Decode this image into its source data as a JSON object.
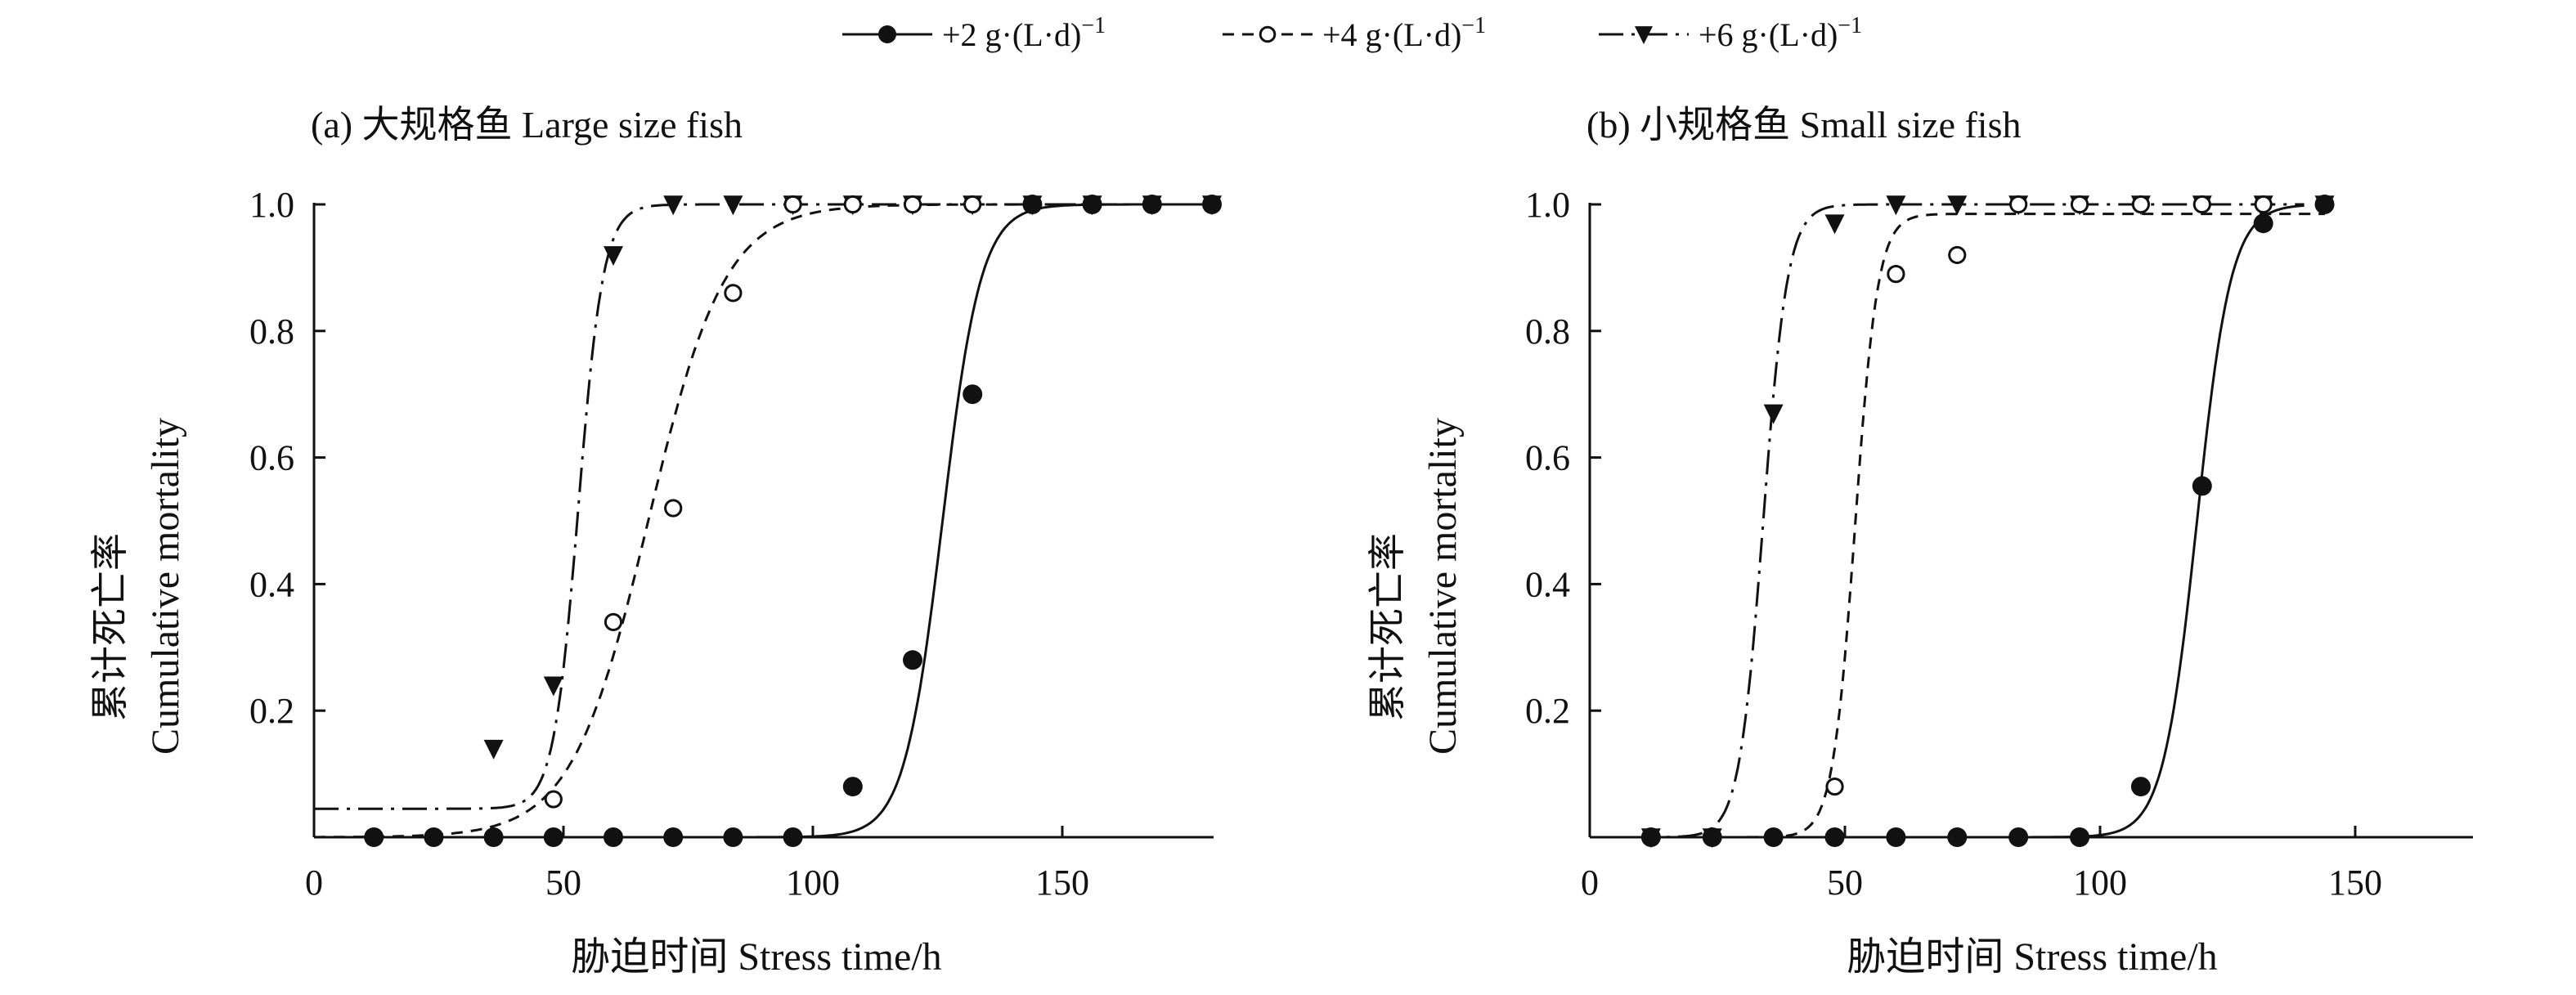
{
  "legend": [
    {
      "label": "+2 g·(L·d)",
      "sup": "−1",
      "marker": "filled-circle",
      "line": "solid"
    },
    {
      "label": "+4 g·(L·d)",
      "sup": "−1",
      "marker": "open-circle",
      "line": "dashed"
    },
    {
      "label": "+6 g·(L·d)",
      "sup": "−1",
      "marker": "filled-triangle-down",
      "line": "dash-dot"
    }
  ],
  "chart_data": [
    {
      "type": "scatter",
      "title": "(a) 大规格鱼 Large size fish",
      "xlabel": "胁迫时间 Stress time/h",
      "ylabel_cn": "累计死亡率",
      "ylabel": "Cumulative mortality",
      "xlim": [
        0,
        180
      ],
      "ylim": [
        0,
        1.0
      ],
      "xticks": [
        "0",
        "50",
        "100",
        "150"
      ],
      "yticks": [
        "0.2",
        "0.4",
        "0.6",
        "0.8",
        "1.0"
      ],
      "series": [
        {
          "name": "+2 g·(L·d)−1",
          "x": [
            12,
            24,
            36,
            48,
            60,
            72,
            84,
            96,
            108,
            120,
            132,
            144,
            156,
            168,
            180
          ],
          "y": [
            0,
            0,
            0,
            0,
            0,
            0,
            0,
            0,
            0.08,
            0.28,
            0.7,
            1,
            1,
            1,
            1
          ],
          "fit": {
            "lower": 0,
            "upper": 1,
            "mid": 126,
            "k": 0.26
          }
        },
        {
          "name": "+4 g·(L·d)−1",
          "x": [
            12,
            24,
            36,
            48,
            60,
            72,
            84,
            96,
            108,
            120,
            132,
            144,
            156,
            168,
            180
          ],
          "y": [
            0,
            0,
            0,
            0.06,
            0.34,
            0.52,
            0.86,
            1,
            1,
            1,
            1,
            1,
            1,
            1,
            1
          ],
          "fit": {
            "lower": 0,
            "upper": 1,
            "mid": 67,
            "k": 0.13
          }
        },
        {
          "name": "+6 g·(L·d)−1",
          "x": [
            36,
            48,
            60,
            72,
            84,
            96,
            108,
            120,
            132,
            144,
            156,
            168,
            180
          ],
          "y": [
            0.14,
            0.24,
            0.92,
            1,
            1,
            1,
            1,
            1,
            1,
            1,
            1,
            1,
            1
          ],
          "fit": {
            "lower": 0.045,
            "upper": 1,
            "mid": 53,
            "k": 0.4
          }
        }
      ]
    },
    {
      "type": "scatter",
      "title": "(b) 小规格鱼 Small size fish",
      "xlabel": "胁迫时间 Stress time/h",
      "ylabel_cn": "累计死亡率",
      "ylabel": "Cumulative mortality",
      "xlim": [
        0,
        173
      ],
      "ylim": [
        0,
        1.0
      ],
      "xticks": [
        "0",
        "50",
        "100",
        "150"
      ],
      "yticks": [
        "0.2",
        "0.4",
        "0.6",
        "0.8",
        "1.0"
      ],
      "series": [
        {
          "name": "+2 g·(L·d)−1",
          "x": [
            12,
            24,
            36,
            48,
            60,
            72,
            84,
            96,
            108,
            120,
            132,
            144
          ],
          "y": [
            0,
            0,
            0,
            0,
            0,
            0,
            0,
            0,
            0.08,
            0.555,
            0.97,
            1
          ],
          "fit": {
            "lower": 0,
            "upper": 1,
            "mid": 119,
            "k": 0.3
          }
        },
        {
          "name": "+4 g·(L·d)−1",
          "x": [
            12,
            24,
            36,
            48,
            60,
            72,
            84,
            96,
            108,
            120,
            132,
            144
          ],
          "y": [
            0,
            0,
            0,
            0.08,
            0.89,
            0.92,
            1,
            1,
            1,
            1,
            1,
            1
          ],
          "fit": {
            "lower": 0,
            "upper": 0.985,
            "mid": 52,
            "k": 0.45
          }
        },
        {
          "name": "+6 g·(L·d)−1",
          "x": [
            12,
            24,
            36,
            48,
            60,
            72,
            84,
            96,
            108,
            120,
            132,
            144
          ],
          "y": [
            0,
            0,
            0.67,
            0.97,
            1,
            1,
            1,
            1,
            1,
            1,
            1,
            1
          ],
          "fit": {
            "lower": 0,
            "upper": 1,
            "mid": 34,
            "k": 0.42
          }
        }
      ]
    }
  ]
}
